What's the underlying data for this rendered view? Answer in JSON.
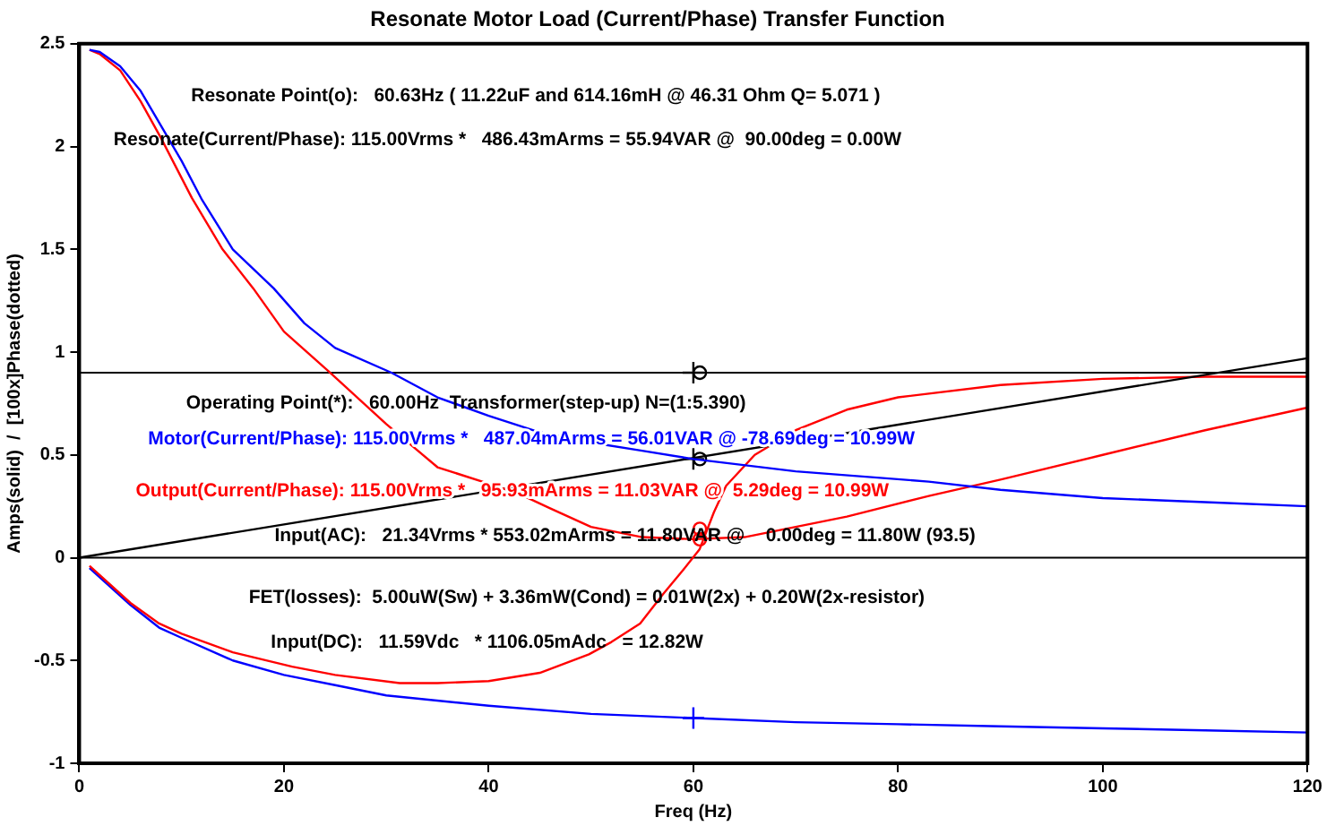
{
  "chart_data": {
    "type": "line",
    "title": "Resonate Motor Load (Current/Phase) Transfer Function",
    "xlabel": "Freq (Hz)",
    "ylabel": "Amps(solid)  /  [100x]Phase(dotted)",
    "xlim": [
      0,
      120
    ],
    "xticks": [
      0,
      20,
      40,
      60,
      80,
      100,
      120
    ],
    "ylim": [
      -1,
      2.5
    ],
    "yticks": [
      -1,
      -0.5,
      0,
      0.5,
      1,
      1.5,
      2,
      2.5
    ],
    "grid": false,
    "legend": false,
    "marker": "none",
    "line_style": "solid",
    "series": [
      {
        "name": "Motor(Current/Phase): 115.00Vrms *   487.04mArms = 56.01VAR @ -78.69deg = 10.99W",
        "color": "#0000ff",
        "x": [
          1,
          2,
          4,
          6,
          8,
          10,
          12,
          15,
          19,
          22,
          25,
          30.5,
          35,
          40,
          45,
          50,
          55,
          60,
          70,
          83,
          90,
          100,
          110,
          120
        ],
        "values": [
          2.47,
          2.46,
          2.39,
          2.27,
          2.1,
          1.93,
          1.74,
          1.5,
          1.31,
          1.14,
          1.02,
          0.9,
          0.78,
          0.69,
          0.61,
          0.56,
          0.52,
          0.48,
          0.42,
          0.37,
          0.33,
          0.29,
          0.27,
          0.25
        ]
      },
      {
        "name": "Output(Current/Phase): 115.00Vrms *   95.93mArms = 11.03VAR @  5.29deg = 10.99W",
        "color": "#ff0000",
        "x": [
          1,
          2,
          4,
          6,
          8,
          11,
          14,
          17,
          20,
          24.5,
          30,
          35,
          40,
          43,
          46,
          50,
          55,
          60,
          65,
          70,
          75,
          83,
          90,
          100,
          110,
          120
        ],
        "values": [
          2.47,
          2.45,
          2.37,
          2.22,
          2.04,
          1.75,
          1.5,
          1.31,
          1.1,
          0.9,
          0.65,
          0.44,
          0.36,
          0.31,
          0.24,
          0.15,
          0.1,
          0.09,
          0.1,
          0.15,
          0.2,
          0.3,
          0.38,
          0.5,
          0.62,
          0.73
        ]
      },
      {
        "color": "#000000",
        "x": [
          0,
          120
        ],
        "values": [
          0,
          0.97
        ]
      },
      {
        "color": "#ff0000",
        "x": [
          1,
          5,
          7.8,
          10,
          15,
          20.8,
          25,
          31.3,
          35,
          40,
          45,
          49.8,
          52,
          54.8,
          57,
          59,
          60.6,
          62,
          63.2,
          66,
          70,
          75,
          80,
          90,
          100,
          110,
          120
        ],
        "values": [
          -0.04,
          -0.22,
          -0.32,
          -0.37,
          -0.46,
          -0.53,
          -0.57,
          -0.61,
          -0.61,
          -0.6,
          -0.56,
          -0.47,
          -0.41,
          -0.32,
          -0.18,
          -0.06,
          0.04,
          0.22,
          0.35,
          0.5,
          0.62,
          0.72,
          0.78,
          0.84,
          0.87,
          0.88,
          0.88
        ]
      },
      {
        "color": "#0000ff",
        "x": [
          1,
          5,
          7.8,
          10,
          15,
          20,
          25,
          30,
          40,
          50,
          60,
          70,
          80,
          90,
          100,
          110,
          120
        ],
        "values": [
          -0.05,
          -0.23,
          -0.34,
          -0.39,
          -0.5,
          -0.57,
          -0.62,
          -0.67,
          -0.72,
          -0.76,
          -0.78,
          -0.8,
          -0.81,
          -0.82,
          -0.83,
          -0.84,
          -0.85
        ]
      },
      {
        "type": "scatter",
        "marker": "circle",
        "color": "#000000",
        "x": [
          60.63,
          60.63
        ],
        "values": [
          0.9,
          0.48
        ]
      },
      {
        "type": "scatter",
        "marker": "cross",
        "color": "#000000",
        "x": [
          60,
          60
        ],
        "values": [
          0.9,
          0.48
        ]
      },
      {
        "type": "scatter",
        "marker": "cross",
        "color": "#0000ff",
        "x": [
          60
        ],
        "values": [
          -0.78
        ]
      },
      {
        "type": "scatter",
        "marker": "circle",
        "color": "#ff0000",
        "x": [
          60.63,
          60.63
        ],
        "values": [
          0.09,
          0.14
        ]
      }
    ],
    "ref_lines": [
      {
        "axis": "y",
        "value": 0.9,
        "color": "#000000"
      },
      {
        "axis": "y",
        "value": 0,
        "color": "#000000"
      }
    ],
    "annotations": [
      "Resonate Point(o):   60.63Hz ( 11.22uF and 614.16mH @ 46.31 Ohm Q= 5.071 )",
      "Resonate(Current/Phase): 115.00Vrms *   486.43mArms = 55.94VAR @  90.00deg = 0.00W",
      "Operating Point(*):   60.00Hz  Transformer(step-up) N=(1:5.390)",
      "Input(AC):   21.34Vrms * 553.02mArms = 11.80VAR @    0.00deg = 11.80W (93.5)",
      "FET(losses):  5.00uW(Sw) + 3.36mW(Cond) = 0.01W(2x) + 0.20W(2x-resistor)",
      "Input(DC):   11.59Vdc   * 1106.05mAdc   = 12.82W"
    ]
  }
}
